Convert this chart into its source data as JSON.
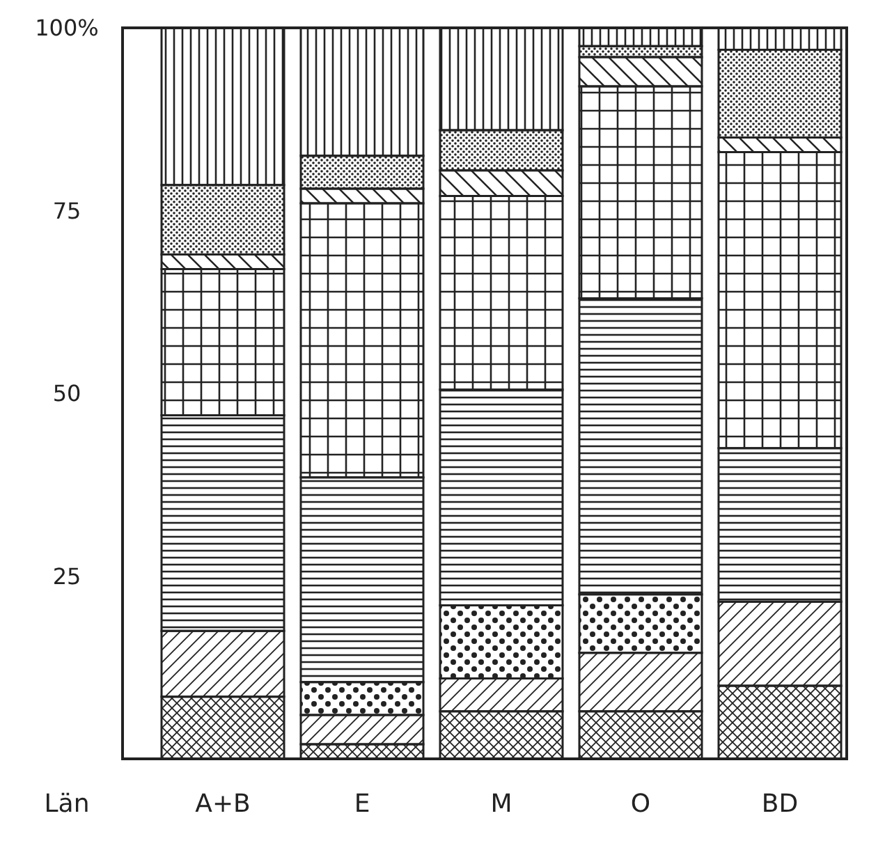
{
  "chart_data": {
    "type": "bar",
    "stacked": true,
    "xlabel": "Län",
    "categories": [
      "A+B",
      "E",
      "M",
      "O",
      "BD"
    ],
    "series": [
      {
        "color": "#222222",
        "values": [
          8.5,
          2,
          6.5,
          6.5,
          10
        ]
      },
      {
        "color": "#222222",
        "values": [
          9,
          4,
          4.5,
          8,
          11.5
        ]
      },
      {
        "color": "#222222",
        "values": [
          0,
          4.5,
          10,
          8,
          0
        ]
      },
      {
        "color": "#222222",
        "values": [
          29.5,
          28,
          29.5,
          40.5,
          21
        ]
      },
      {
        "color": "#222222",
        "values": [
          20,
          37.5,
          26.5,
          29,
          40.5
        ]
      },
      {
        "color": "#222222",
        "values": [
          2,
          2,
          3.5,
          4,
          2
        ]
      },
      {
        "color": "#222222",
        "values": [
          9.5,
          4.5,
          5.5,
          1.5,
          12
        ]
      },
      {
        "color": "#222222",
        "values": [
          21.5,
          17.5,
          14,
          2.5,
          3
        ]
      }
    ],
    "ylim": [
      0,
      100
    ],
    "yticks": [
      {
        "value": 25,
        "label": "25"
      },
      {
        "value": 50,
        "label": "50"
      },
      {
        "value": 75,
        "label": "75"
      },
      {
        "value": 100,
        "label": "100%"
      }
    ]
  }
}
